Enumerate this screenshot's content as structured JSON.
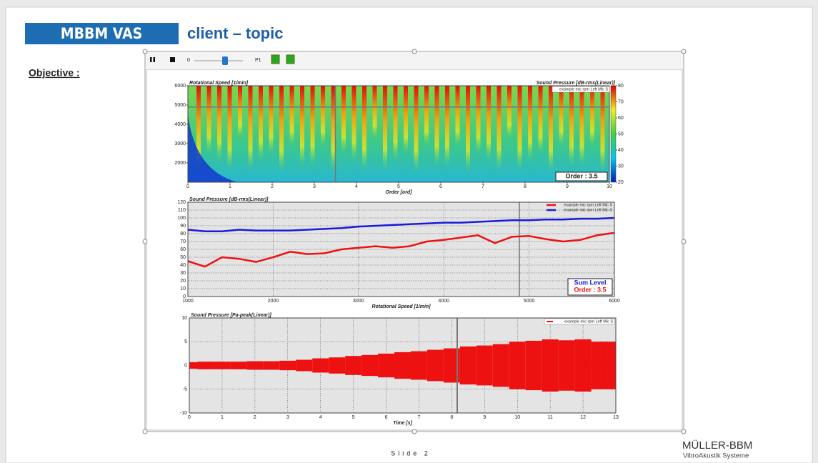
{
  "header": {
    "badge": "MBBM VAS",
    "title": "client – topic",
    "objective": "Objective :"
  },
  "toolbar": {
    "slider_value": "0",
    "position": "P1"
  },
  "chart_data": [
    {
      "type": "spectrogram",
      "y_label": "Rotational Speed [1/min]",
      "y2_label": "Sound Pressure [dB-rms(Linear)]",
      "x_label": "Order [ord]",
      "legend_label": "example mic rpm  Left Mic  S",
      "annotation": "Order :  3.5",
      "xlim": [
        0,
        10
      ],
      "xticks": [
        0,
        1,
        2,
        3,
        4,
        5,
        6,
        7,
        8,
        9,
        10
      ],
      "ylim": [
        1000,
        6000
      ],
      "yticks": [
        2000,
        3000,
        4000,
        5000,
        6000
      ],
      "y2lim": [
        20,
        80
      ],
      "y2ticks": [
        20,
        30,
        40,
        50,
        60,
        70,
        80
      ],
      "grid": false
    },
    {
      "type": "line",
      "y_label": "Sound Pressure [dB-rms(Linear)]",
      "x_label": "Rotational Speed [1/min]",
      "x": [
        1000,
        1200,
        1400,
        1600,
        1800,
        2000,
        2200,
        2400,
        2600,
        2800,
        3000,
        3200,
        3400,
        3600,
        3800,
        4000,
        4200,
        4400,
        4600,
        4800,
        5000,
        5200,
        5400,
        5600,
        5800,
        6000
      ],
      "series": [
        {
          "name": "example mic rpm  Left Mic  S",
          "color": "#ee1111",
          "values": [
            45,
            38,
            50,
            48,
            44,
            50,
            57,
            54,
            55,
            60,
            62,
            64,
            62,
            64,
            70,
            72,
            75,
            78,
            68,
            76,
            77,
            73,
            70,
            72,
            78,
            81
          ]
        },
        {
          "name": "example mic rpm  Left Mic  S",
          "color": "#1a1adb",
          "values": [
            85,
            83,
            83,
            85,
            84,
            84,
            84,
            85,
            86,
            87,
            89,
            90,
            91,
            92,
            93,
            94,
            94,
            95,
            96,
            97,
            97,
            98,
            98,
            99,
            99,
            100
          ]
        }
      ],
      "annotations": [
        "Sum Level",
        "Order :  3.5"
      ],
      "xlim": [
        1000,
        6000
      ],
      "xticks": [
        1000,
        2000,
        3000,
        4000,
        5000,
        6000
      ],
      "ylim": [
        0,
        120
      ],
      "yticks": [
        0,
        10,
        20,
        30,
        40,
        50,
        60,
        70,
        80,
        90,
        100,
        110,
        120
      ],
      "grid": true
    },
    {
      "type": "waveform",
      "y_label": "Sound Pressure [Pa-peak(Linear)]",
      "x_label": "Time [s]",
      "x": [
        0,
        0.5,
        1,
        1.5,
        2,
        2.5,
        3,
        3.5,
        4,
        4.5,
        5,
        5.5,
        6,
        6.5,
        7,
        7.5,
        8,
        8.5,
        9,
        9.5,
        10,
        10.5,
        11,
        11.5,
        12,
        12.5,
        13
      ],
      "series": [
        {
          "name": "example mic rpm  Left Mic  S",
          "color": "#ee1111",
          "values": [
            0.7,
            0.8,
            0.8,
            0.8,
            0.9,
            0.9,
            1.0,
            1.2,
            1.5,
            1.7,
            2.0,
            2.2,
            2.5,
            2.8,
            3.0,
            3.3,
            3.6,
            4.0,
            4.2,
            4.5,
            5.0,
            5.2,
            5.5,
            5.3,
            5.5,
            5.0,
            5.0
          ]
        }
      ],
      "xlim": [
        0,
        13
      ],
      "xticks": [
        0,
        1,
        2,
        3,
        4,
        5,
        6,
        7,
        8,
        9,
        10,
        11,
        12,
        13
      ],
      "ylim": [
        -10,
        10
      ],
      "yticks": [
        -10,
        -5,
        0,
        5,
        10
      ],
      "grid": true
    }
  ],
  "footer": {
    "slide": "Slide 2",
    "company": "MÜLLER-BBM",
    "division": "VibroAkustik Systeme"
  }
}
